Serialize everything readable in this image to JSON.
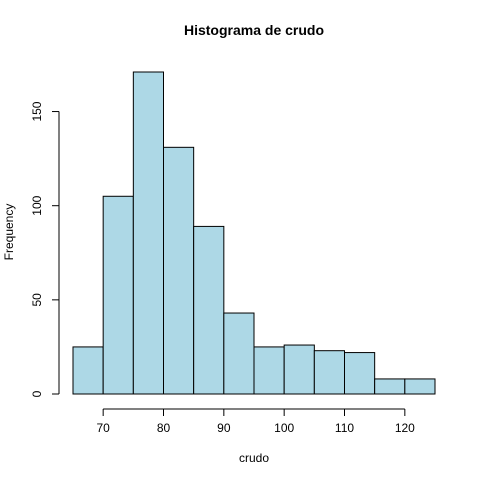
{
  "chart_data": {
    "type": "bar",
    "title": "Histograma de crudo",
    "xlabel": "crudo",
    "ylabel": "Frequency",
    "bins": [
      {
        "from": 65,
        "to": 70,
        "count": 25
      },
      {
        "from": 70,
        "to": 75,
        "count": 105
      },
      {
        "from": 75,
        "to": 80,
        "count": 171
      },
      {
        "from": 80,
        "to": 85,
        "count": 131
      },
      {
        "from": 85,
        "to": 90,
        "count": 89
      },
      {
        "from": 90,
        "to": 95,
        "count": 43
      },
      {
        "from": 95,
        "to": 100,
        "count": 25
      },
      {
        "from": 100,
        "to": 105,
        "count": 26
      },
      {
        "from": 105,
        "to": 110,
        "count": 23
      },
      {
        "from": 110,
        "to": 115,
        "count": 22
      },
      {
        "from": 115,
        "to": 120,
        "count": 8
      },
      {
        "from": 120,
        "to": 125,
        "count": 8
      }
    ],
    "x_ticks": [
      "70",
      "80",
      "90",
      "100",
      "110",
      "120"
    ],
    "y_ticks": [
      "0",
      "50",
      "100",
      "150"
    ],
    "xlim": [
      65,
      125
    ],
    "ylim": [
      0,
      171
    ],
    "bar_fill": "#add8e6",
    "grid": false
  }
}
